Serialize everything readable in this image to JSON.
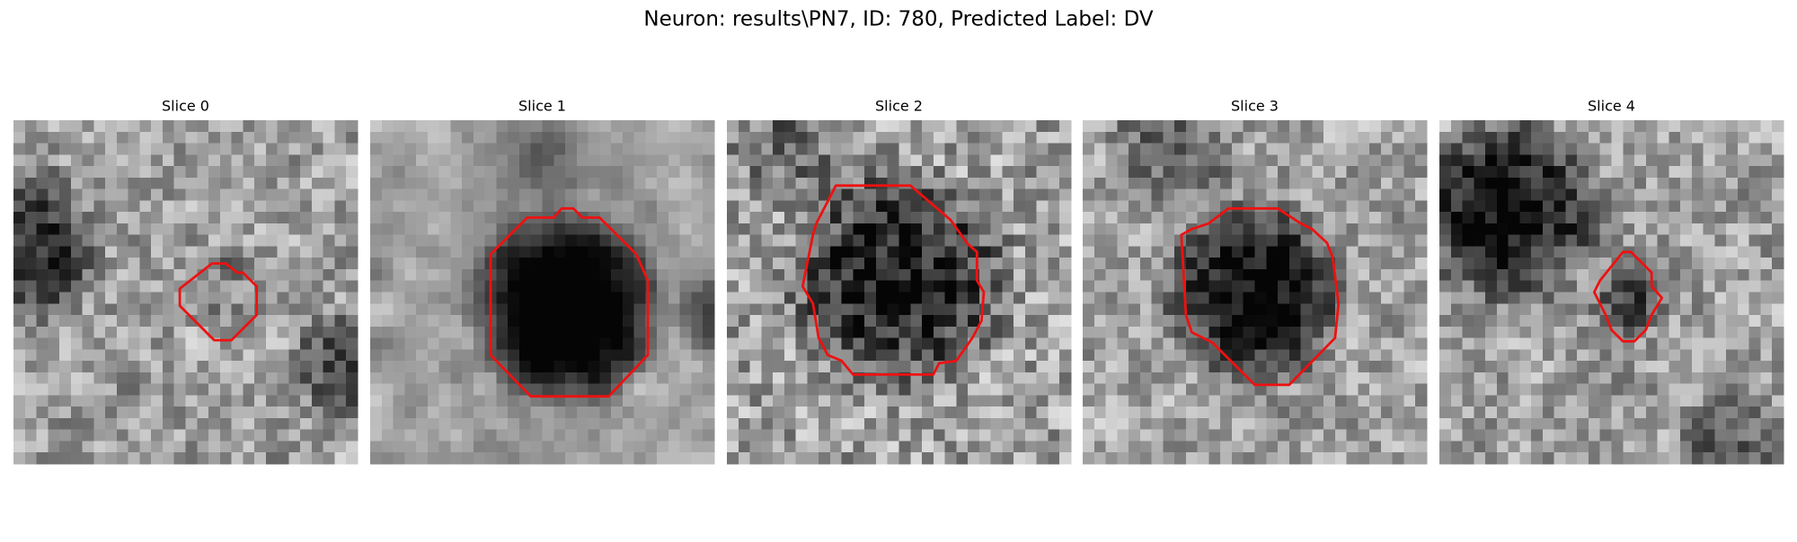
{
  "figure": {
    "title": "Neuron: results\\PN7, ID: 780, Predicted Label: DV",
    "panels": [
      {
        "title": "Slice 0"
      },
      {
        "title": "Slice 1"
      },
      {
        "title": "Slice 2"
      },
      {
        "title": "Slice 3"
      },
      {
        "title": "Slice 4"
      }
    ]
  }
}
